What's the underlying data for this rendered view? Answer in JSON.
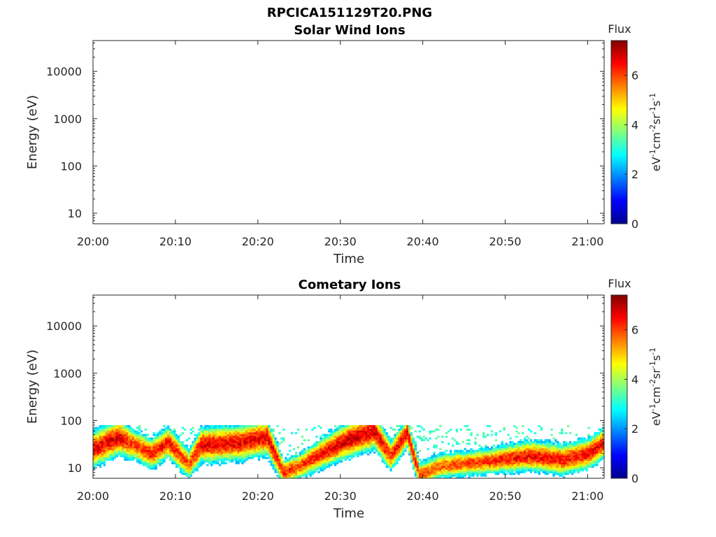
{
  "figure_title": "RPCICA151129T20.PNG",
  "colors": {
    "colormap": "jet",
    "axis": "#262626",
    "background": "#ffffff"
  },
  "chart_data": [
    {
      "type": "heatmap",
      "title": "Solar Wind Ions",
      "xlabel": "Time",
      "ylabel": "Energy (eV)",
      "x_range": [
        "20:00",
        "21:02"
      ],
      "x_ticks": [
        "20:00",
        "20:10",
        "20:20",
        "20:30",
        "20:40",
        "20:50",
        "21:00"
      ],
      "y_scale": "log",
      "y_range": [
        6,
        45000
      ],
      "y_ticks": [
        "10",
        "100",
        "1000",
        "10000"
      ],
      "colorbar": {
        "title": "Flux",
        "unit": "eV-1cm-2sr-1s-1",
        "range": [
          0,
          7.4
        ],
        "ticks": [
          "0",
          "2",
          "4",
          "6"
        ]
      },
      "grid": false,
      "data": []
    },
    {
      "type": "heatmap",
      "title": "Cometary Ions",
      "xlabel": "Time",
      "ylabel": "Energy (eV)",
      "x_range": [
        "20:00",
        "21:02"
      ],
      "x_ticks": [
        "20:00",
        "20:10",
        "20:20",
        "20:30",
        "20:40",
        "20:50",
        "21:00"
      ],
      "y_scale": "log",
      "y_range": [
        6,
        45000
      ],
      "y_ticks": [
        "10",
        "100",
        "1000",
        "10000"
      ],
      "colorbar": {
        "title": "Flux",
        "unit": "eV-1cm-2sr-1s-1",
        "range": [
          0,
          7.4
        ],
        "ticks": [
          "0",
          "2",
          "4",
          "6"
        ]
      },
      "grid": false,
      "data": {
        "energy_top_eV": 80,
        "energy_bottom_eV": 6,
        "peak_track": [
          {
            "t_min": 0,
            "peak_eV": 25,
            "width_dec": 0.35,
            "max_flux": 6.6
          },
          {
            "t_min": 3,
            "peak_eV": 45,
            "width_dec": 0.35,
            "max_flux": 6.7
          },
          {
            "t_min": 5,
            "peak_eV": 30,
            "width_dec": 0.3,
            "max_flux": 6.0
          },
          {
            "t_min": 7,
            "peak_eV": 20,
            "width_dec": 0.3,
            "max_flux": 6.3
          },
          {
            "t_min": 9,
            "peak_eV": 35,
            "width_dec": 0.3,
            "max_flux": 6.5
          },
          {
            "t_min": 11.5,
            "peak_eV": 12,
            "width_dec": 0.3,
            "max_flux": 5.8
          },
          {
            "t_min": 13,
            "peak_eV": 30,
            "width_dec": 0.35,
            "max_flux": 6.6
          },
          {
            "t_min": 18,
            "peak_eV": 35,
            "width_dec": 0.35,
            "max_flux": 6.6
          },
          {
            "t_min": 21,
            "peak_eV": 45,
            "width_dec": 0.35,
            "max_flux": 6.7
          },
          {
            "t_min": 23,
            "peak_eV": 8,
            "width_dec": 0.25,
            "max_flux": 6.3
          },
          {
            "t_min": 25,
            "peak_eV": 11,
            "width_dec": 0.25,
            "max_flux": 6.0
          },
          {
            "t_min": 28,
            "peak_eV": 22,
            "width_dec": 0.3,
            "max_flux": 6.6
          },
          {
            "t_min": 31,
            "peak_eV": 40,
            "width_dec": 0.35,
            "max_flux": 6.8
          },
          {
            "t_min": 34,
            "peak_eV": 60,
            "width_dec": 0.35,
            "max_flux": 6.7
          },
          {
            "t_min": 36,
            "peak_eV": 18,
            "width_dec": 0.3,
            "max_flux": 6.2
          },
          {
            "t_min": 38,
            "peak_eV": 55,
            "width_dec": 0.3,
            "max_flux": 6.6
          },
          {
            "t_min": 39.5,
            "peak_eV": 7,
            "width_dec": 0.25,
            "max_flux": 6.0
          },
          {
            "t_min": 42,
            "peak_eV": 11,
            "width_dec": 0.25,
            "max_flux": 5.8
          },
          {
            "t_min": 48,
            "peak_eV": 14,
            "width_dec": 0.25,
            "max_flux": 6.2
          },
          {
            "t_min": 53,
            "peak_eV": 18,
            "width_dec": 0.3,
            "max_flux": 6.5
          },
          {
            "t_min": 57,
            "peak_eV": 15,
            "width_dec": 0.3,
            "max_flux": 6.4
          },
          {
            "t_min": 60,
            "peak_eV": 20,
            "width_dec": 0.3,
            "max_flux": 6.5
          },
          {
            "t_min": 62,
            "peak_eV": 35,
            "width_dec": 0.3,
            "max_flux": 6.6
          }
        ]
      }
    }
  ]
}
